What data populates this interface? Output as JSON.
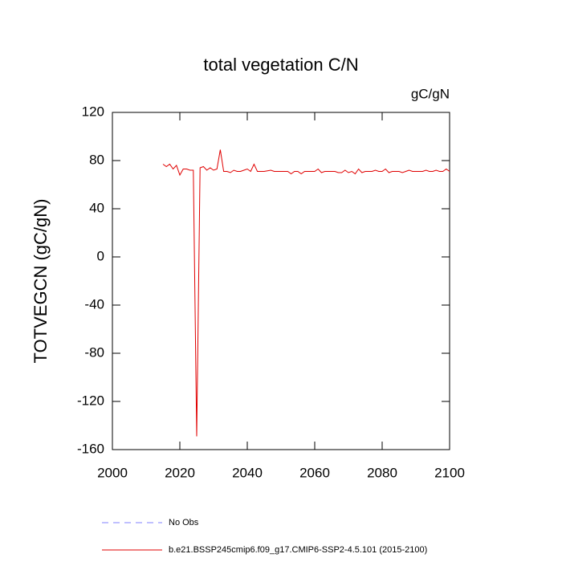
{
  "chart_data": {
    "type": "line",
    "title": "total vegetation C/N",
    "units": "gC/gN",
    "y_label": "TOTVEGCN  (gC/gN)",
    "x": [
      2015,
      2016,
      2017,
      2018,
      2019,
      2020,
      2021,
      2022,
      2023,
      2024,
      2025,
      2026,
      2027,
      2028,
      2029,
      2030,
      2031,
      2032,
      2033,
      2034,
      2035,
      2036,
      2037,
      2038,
      2039,
      2040,
      2041,
      2042,
      2043,
      2044,
      2045,
      2046,
      2047,
      2048,
      2049,
      2050,
      2051,
      2052,
      2053,
      2054,
      2055,
      2056,
      2057,
      2058,
      2059,
      2060,
      2061,
      2062,
      2063,
      2064,
      2065,
      2066,
      2067,
      2068,
      2069,
      2070,
      2071,
      2072,
      2073,
      2074,
      2075,
      2076,
      2077,
      2078,
      2079,
      2080,
      2081,
      2082,
      2083,
      2084,
      2085,
      2086,
      2087,
      2088,
      2089,
      2090,
      2091,
      2092,
      2093,
      2094,
      2095,
      2096,
      2097,
      2098,
      2099,
      2100
    ],
    "series": [
      {
        "name": "No Obs",
        "color": "#8080ff",
        "dashed": true,
        "values": [
          null,
          null,
          null,
          null,
          null,
          null,
          null,
          null,
          null,
          null,
          null,
          null,
          null,
          null,
          null,
          null,
          null,
          null,
          null,
          null,
          null,
          null,
          null,
          null,
          null,
          null,
          null,
          null,
          null,
          null,
          null,
          null,
          null,
          null,
          null,
          null,
          null,
          null,
          null,
          null,
          null,
          null,
          null,
          null,
          null,
          null,
          null,
          null,
          null,
          null,
          null,
          null,
          null,
          null,
          null,
          null,
          null,
          null,
          null,
          null,
          null,
          null,
          null,
          null,
          null,
          null,
          null,
          null,
          null,
          null,
          null,
          null,
          null,
          null,
          null,
          null,
          null,
          null,
          null,
          null,
          null,
          null,
          null,
          null,
          null,
          null
        ]
      },
      {
        "name": "b.e21.BSSP245cmip6.f09_g17.CMIP6-SSP2-4.5.101 (2015-2100)",
        "color": "#e00000",
        "dashed": false,
        "values": [
          77,
          75,
          77,
          73,
          76,
          68,
          73,
          73,
          72,
          72,
          -149,
          74,
          75,
          72,
          74,
          72,
          73,
          89,
          71,
          71,
          70,
          72,
          71,
          71,
          72,
          73,
          71,
          77,
          71,
          71,
          71,
          71.5,
          72,
          71,
          71,
          71,
          71,
          71,
          69,
          71,
          71,
          69,
          71,
          71,
          71,
          71,
          73,
          70,
          71,
          71,
          71,
          71,
          70,
          70,
          72,
          70,
          71,
          69,
          73,
          70,
          71,
          71,
          71,
          72,
          71,
          71,
          73,
          70,
          71,
          71,
          71,
          70,
          71,
          72,
          71,
          71,
          71,
          71,
          72,
          71,
          71,
          72,
          71,
          71,
          73,
          71
        ]
      }
    ],
    "xlim": [
      2000,
      2100
    ],
    "xticks": [
      2000,
      2020,
      2040,
      2060,
      2080,
      2100
    ],
    "ylim": [
      -160,
      120
    ],
    "yticks": [
      -160,
      -120,
      -80,
      -40,
      0,
      40,
      80,
      120
    ]
  }
}
